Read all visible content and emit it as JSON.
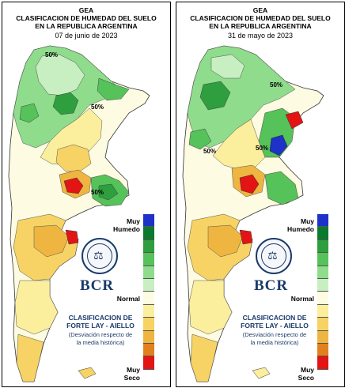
{
  "legend": {
    "colors": [
      "#1e32c8",
      "#0b7a2e",
      "#2e9e3f",
      "#55c25a",
      "#8fdc8c",
      "#c8efc2",
      "#fdfbe2",
      "#fbee9c",
      "#f6d364",
      "#eeb541",
      "#e3801e",
      "#e31414"
    ],
    "muy_humedo": "Muy\nHumedo",
    "normal": "Normal",
    "muy_seco": "Muy\nSeco"
  },
  "panels": [
    {
      "org": "GEA",
      "title_line1": "CLASIFICACION DE HUMEDAD DEL SUELO",
      "title_line2": "EN LA REPUBLICA ARGENTINA",
      "date": "07 de junio de 2023",
      "contour_labels": [
        "50%",
        "50%",
        "50%"
      ],
      "bcr_text": "BCR",
      "classification_title": "CLASIFICACION DE\nFORTE LAY - AIELLO",
      "classification_subtitle": "(Desviación respecto de\nla media histórica)",
      "seal_icon": "bolsa-de-comercio-seal"
    },
    {
      "org": "GEA",
      "title_line1": "CLASIFICACION DE HUMEDAD DEL SUELO",
      "title_line2": "EN LA REPUBLICA ARGENTINA",
      "date": "31 de mayo de 2023",
      "contour_labels": [
        "50%",
        "50%",
        "50%"
      ],
      "bcr_text": "BCR",
      "classification_title": "CLASIFICACION DE\nFORTE LAY - AIELLO",
      "classification_subtitle": "(Desviación respecto de\nla media histórica)",
      "seal_icon": "bolsa-de-comercio-seal"
    }
  ]
}
